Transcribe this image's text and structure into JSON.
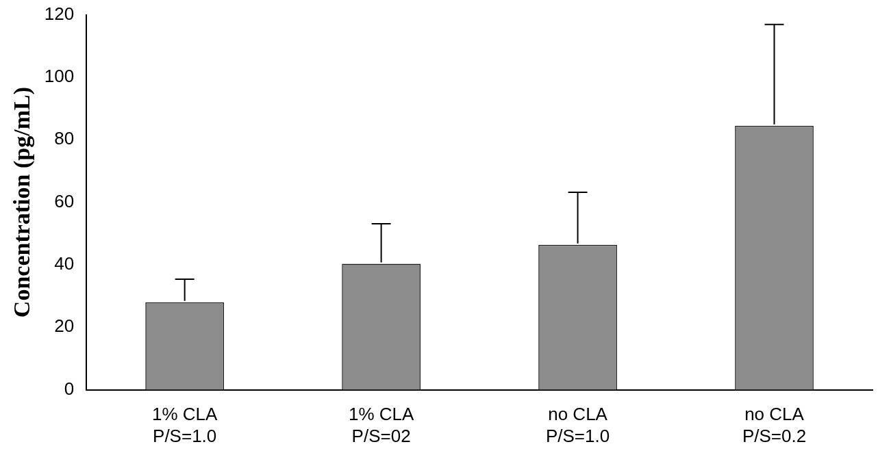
{
  "chart_data": {
    "type": "bar",
    "ylabel": "Concentration (pg/mL)",
    "categories": [
      "1% CLA\nP/S=1.0",
      "1% CLA\nP/S=02",
      "no CLA\nP/S=1.0",
      "no CLA\nP/S=0.2"
    ],
    "values": [
      28,
      40.3,
      46.4,
      84.5
    ],
    "errors": [
      [
        28,
        35.4
      ],
      [
        40.3,
        53.1
      ],
      [
        46.4,
        63.2
      ],
      [
        84.5,
        116.9
      ]
    ],
    "color": "#8c8c8c",
    "ylim": [
      0,
      120
    ],
    "yticks": [
      0,
      20,
      40,
      60,
      80,
      100,
      120
    ],
    "grid": false,
    "legend": false
  }
}
